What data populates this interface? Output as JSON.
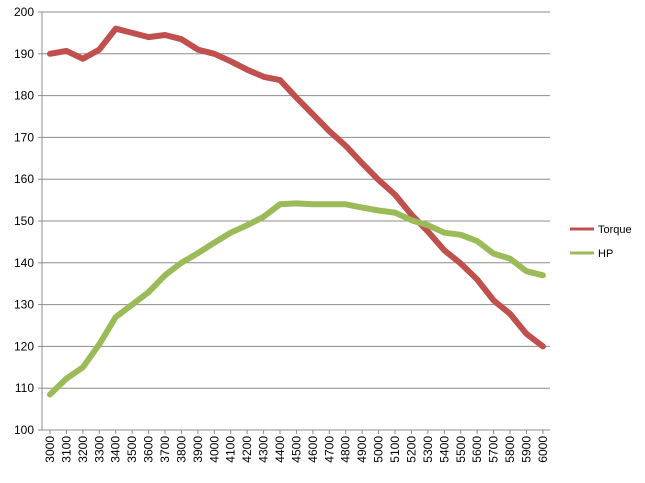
{
  "chart_data": {
    "type": "line",
    "title": "",
    "xlabel": "",
    "ylabel": "",
    "x": [
      3000,
      3100,
      3200,
      3300,
      3400,
      3500,
      3600,
      3700,
      3800,
      3900,
      4000,
      4100,
      4200,
      4300,
      4400,
      4500,
      4600,
      4700,
      4800,
      4900,
      5000,
      5100,
      5200,
      5300,
      5400,
      5500,
      5600,
      5700,
      5800,
      5900,
      6000
    ],
    "x_tick_labels": [
      "3000",
      "3100",
      "3200",
      "3300",
      "3400",
      "3500",
      "3600",
      "3700",
      "3800",
      "3900",
      "4000",
      "4100",
      "4200",
      "4300",
      "4400",
      "4500",
      "4600",
      "4700",
      "4800",
      "4900",
      "5000",
      "5100",
      "5200",
      "5300",
      "5400",
      "5500",
      "5600",
      "5700",
      "5800",
      "5900",
      "6000"
    ],
    "ylim": [
      100,
      200
    ],
    "y_ticks": [
      100,
      110,
      120,
      130,
      140,
      150,
      160,
      170,
      180,
      190,
      200
    ],
    "grid": "horizontal",
    "legend_position": "right",
    "series": [
      {
        "name": "Torque",
        "color": "#c0504d",
        "values": [
          190,
          190.7,
          188.8,
          191,
          196,
          195,
          194,
          194.5,
          193.5,
          191,
          190,
          188.2,
          186.2,
          184.5,
          183.7,
          179.5,
          175.5,
          171.5,
          168,
          163.8,
          159.8,
          156.3,
          151.5,
          147.5,
          143,
          139.8,
          136,
          131,
          127.8,
          123,
          120
        ]
      },
      {
        "name": "HP",
        "color": "#9bbb59",
        "values": [
          108.5,
          112.3,
          115,
          120.5,
          127,
          130,
          133,
          137,
          140,
          142.3,
          144.8,
          147.2,
          149,
          151,
          154,
          154.2,
          154,
          154,
          154,
          153.2,
          152.5,
          152,
          150.2,
          149,
          147.2,
          146.7,
          145.2,
          142.2,
          141,
          138,
          137
        ]
      }
    ]
  }
}
